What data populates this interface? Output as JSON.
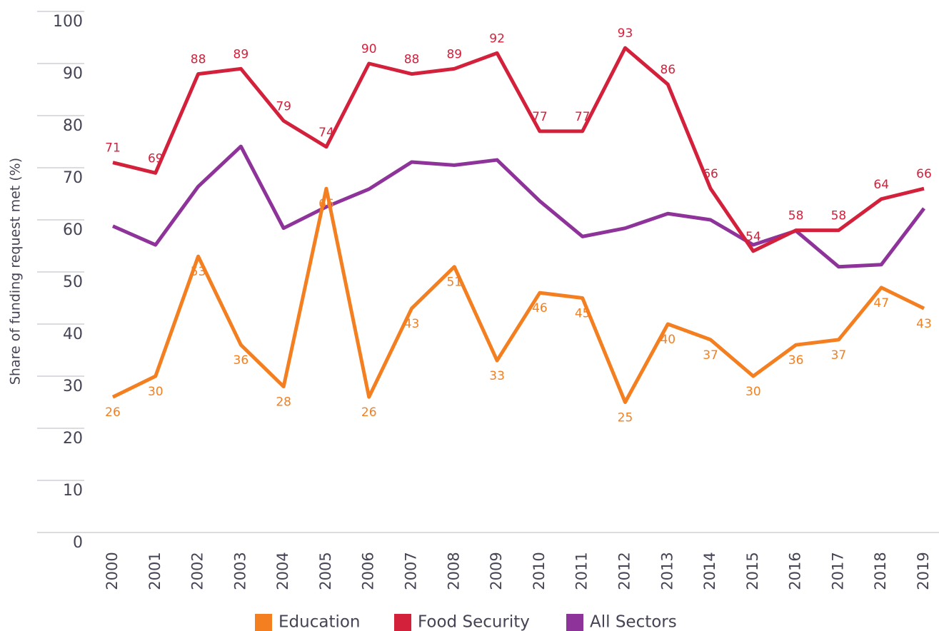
{
  "chart_data": {
    "type": "line",
    "y_label": "Share of funding request met (%)",
    "categories": [
      "2000",
      "2001",
      "2002",
      "2003",
      "2004",
      "2005",
      "2006",
      "2007",
      "2008",
      "2009",
      "2010",
      "2011",
      "2012",
      "2013",
      "2014",
      "2015",
      "2016",
      "2017",
      "2018",
      "2019"
    ],
    "series": [
      {
        "name": "Education",
        "color": "#f47f20",
        "labels": "below",
        "values": [
          26,
          30,
          53,
          36,
          28,
          66,
          26,
          43,
          51,
          33,
          46,
          45,
          25,
          40,
          37,
          30,
          36,
          37,
          47,
          43
        ]
      },
      {
        "name": "Food Security",
        "color": "#d3213c",
        "labels": "above",
        "values": [
          71,
          69,
          88,
          89,
          79,
          74,
          90,
          88,
          89,
          92,
          77,
          77,
          93,
          86,
          66,
          54,
          58,
          58,
          64,
          66
        ]
      },
      {
        "name": "All Sectors",
        "color": "#8e3399",
        "values": [
          58.8,
          55.2,
          66.4,
          74.1,
          58.4,
          62.5,
          65.9,
          71.1,
          70.5,
          71.5,
          63.6,
          56.8,
          58.4,
          61.2,
          60,
          55.2,
          57.9,
          51,
          51.4,
          62.2
        ]
      }
    ],
    "ylim": [
      0,
      100
    ],
    "yticks": [
      0,
      10,
      20,
      30,
      40,
      50,
      60,
      70,
      80,
      90,
      100
    ],
    "grid": true,
    "legend": "bottom"
  }
}
